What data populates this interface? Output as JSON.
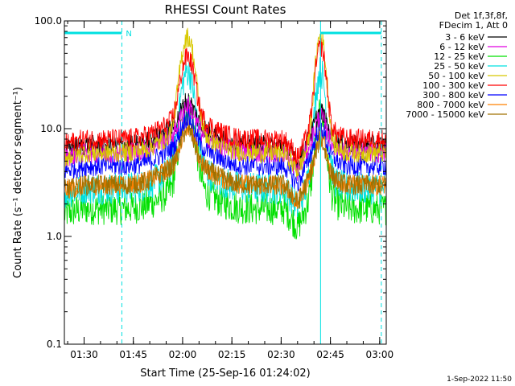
{
  "chart_data": {
    "type": "line",
    "title": "RHESSI Count Rates",
    "xlabel": "Start Time (25-Sep-16 01:24:02)",
    "ylabel": "Count Rate (s⁻¹ detector segment⁻¹)",
    "yscale": "log",
    "ylim": [
      0.1,
      100.0
    ],
    "xlim_minutes": [
      84.0,
      182.0
    ],
    "x_ticks": [
      {
        "label": "01:30",
        "minutes": 90
      },
      {
        "label": "01:45",
        "minutes": 105
      },
      {
        "label": "02:00",
        "minutes": 120
      },
      {
        "label": "02:15",
        "minutes": 135
      },
      {
        "label": "02:30",
        "minutes": 150
      },
      {
        "label": "02:45",
        "minutes": 165
      },
      {
        "label": "03:00",
        "minutes": 180
      }
    ],
    "y_ticks": [
      {
        "label": "0.1",
        "value": 0.1
      },
      {
        "label": "1.0",
        "value": 1.0
      },
      {
        "label": "10.0",
        "value": 10.0
      },
      {
        "label": "100.0",
        "value": 100.0
      }
    ],
    "legend_header": [
      "Det 1f,3f,8f,",
      "FDecim 1, Att 0"
    ],
    "legend_position": "right",
    "series": [
      {
        "name": "3 - 6 keV",
        "color": "#000000",
        "base": 7.0,
        "peak1": 15.0,
        "peak2": 12.0
      },
      {
        "name": "6 - 12 keV",
        "color": "#e000e0",
        "base": 6.0,
        "peak1": 14.0,
        "peak2": 11.0
      },
      {
        "name": "12 - 25 keV",
        "color": "#00e000",
        "base": 1.8,
        "peak1": 17.0,
        "peak2": 14.0
      },
      {
        "name": "25 - 50 keV",
        "color": "#00e0e0",
        "base": 2.8,
        "peak1": 38.0,
        "peak2": 36.0
      },
      {
        "name": "50 - 100 keV",
        "color": "#d8c800",
        "base": 6.0,
        "peak1": 78.0,
        "peak2": 78.0
      },
      {
        "name": "100 - 300 keV",
        "color": "#ff0000",
        "base": 8.0,
        "peak1": 48.0,
        "peak2": 60.0
      },
      {
        "name": "300 - 800 keV",
        "color": "#0000ff",
        "base": 4.5,
        "peak1": 11.0,
        "peak2": 9.0
      },
      {
        "name": "800 - 7000 keV",
        "color": "#ff8000",
        "base": 3.0,
        "peak1": 10.0,
        "peak2": 8.0
      },
      {
        "name": "7000 - 15000 keV",
        "color": "#a07000",
        "base": 3.0,
        "peak1": 9.0,
        "peak2": 7.0
      }
    ],
    "peaks_minutes": [
      121.5,
      162.0
    ],
    "attenuator_bars": [
      {
        "start": 84.0,
        "end": 101.5,
        "label": "N"
      },
      {
        "start": 162.0,
        "end": 180.5,
        "label": ""
      }
    ],
    "vertical_markers_minutes": [
      84.0,
      101.5,
      162.0,
      180.5
    ],
    "footer": "1-Sep-2022 11:50"
  }
}
